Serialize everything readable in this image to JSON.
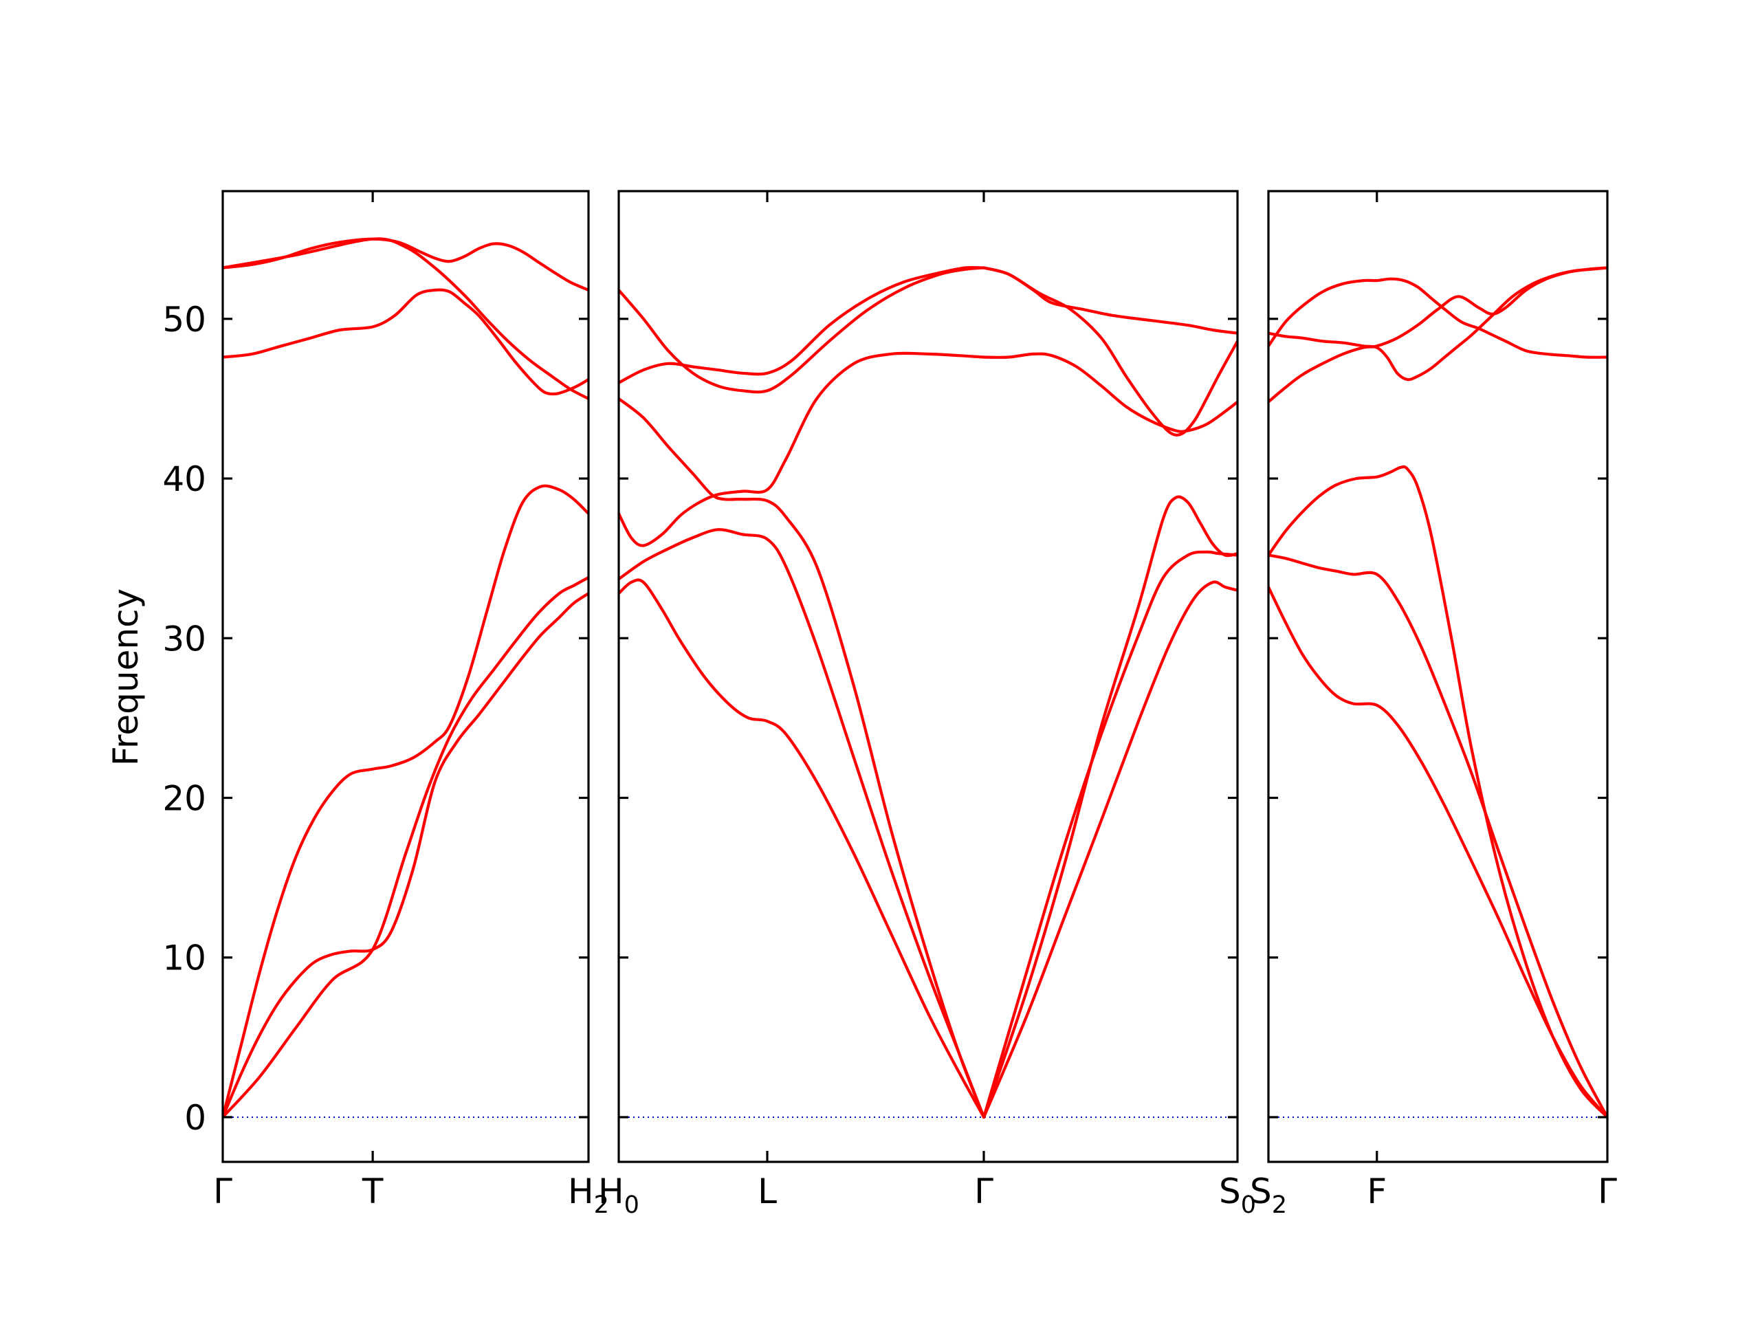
{
  "chart_data": {
    "type": "line",
    "ylabel": "Frequency",
    "ylim": [
      -2.8,
      58
    ],
    "yticks": [
      0,
      10,
      20,
      30,
      40,
      50
    ],
    "yticklabels": [
      "0",
      "10",
      "20",
      "30",
      "40",
      "50"
    ],
    "grid": false,
    "colors": {
      "bands": "#ff0000",
      "zero_line": "#0000cc"
    },
    "panels": [
      {
        "xlim": [
          0,
          1
        ],
        "ticks": [
          {
            "x": 0.0,
            "label": "Γ",
            "sub": ""
          },
          {
            "x": 0.41,
            "label": "T",
            "sub": ""
          },
          {
            "x": 1.0,
            "label": "H",
            "sub": "2"
          }
        ],
        "series": [
          {
            "x": [
              0,
              0.05,
              0.1,
              0.15,
              0.2,
              0.25,
              0.3,
              0.35,
              0.41,
              0.46,
              0.52,
              0.58,
              0.64,
              0.7,
              0.76,
              0.82,
              0.87,
              0.92,
              0.96,
              1.0
            ],
            "values": [
              0,
              2.7,
              5.1,
              7.1,
              8.6,
              9.7,
              10.2,
              10.4,
              10.5,
              11.6,
              15.5,
              21.0,
              23.5,
              25.2,
              27.0,
              28.8,
              30.2,
              31.3,
              32.2,
              32.8
            ]
          },
          {
            "x": [
              0,
              0.05,
              0.1,
              0.15,
              0.2,
              0.25,
              0.3,
              0.35,
              0.41,
              0.46,
              0.52,
              0.58,
              0.62,
              0.67,
              0.72,
              0.77,
              0.82,
              0.87,
              0.92,
              0.96,
              1.0
            ],
            "values": [
              0,
              4.5,
              9.0,
              13.0,
              16.3,
              18.7,
              20.4,
              21.5,
              21.8,
              22.0,
              22.5,
              23.5,
              24.5,
              27.5,
              31.5,
              35.5,
              38.5,
              39.5,
              39.3,
              38.7,
              37.8
            ]
          },
          {
            "x": [
              0,
              0.1,
              0.2,
              0.3,
              0.41,
              0.5,
              0.56,
              0.62,
              0.68,
              0.74,
              0.8,
              0.86,
              0.92,
              0.96,
              1.0
            ],
            "values": [
              0,
              2.5,
              5.6,
              8.6,
              10.5,
              16.5,
              20.5,
              23.8,
              26.2,
              28.0,
              29.8,
              31.5,
              32.8,
              33.3,
              33.8
            ]
          },
          {
            "x": [
              0,
              0.08,
              0.16,
              0.24,
              0.32,
              0.41,
              0.47,
              0.53,
              0.58,
              0.62,
              0.66,
              0.7,
              0.75,
              0.8,
              0.85,
              0.88,
              0.91,
              0.94,
              0.97,
              1.0
            ],
            "values": [
              47.6,
              47.8,
              48.3,
              48.8,
              49.3,
              49.5,
              50.2,
              51.5,
              51.8,
              51.7,
              51.0,
              50.2,
              48.8,
              47.3,
              46.0,
              45.4,
              45.3,
              45.5,
              45.8,
              46.2
            ]
          },
          {
            "x": [
              0,
              0.08,
              0.16,
              0.24,
              0.32,
              0.41,
              0.48,
              0.54,
              0.58,
              0.62,
              0.66,
              0.7,
              0.74,
              0.78,
              0.82,
              0.86,
              0.9,
              0.95,
              1.0
            ],
            "values": [
              53.2,
              53.4,
              53.8,
              54.4,
              54.8,
              55.0,
              54.8,
              54.2,
              53.8,
              53.6,
              53.9,
              54.4,
              54.7,
              54.6,
              54.2,
              53.6,
              53.0,
              52.3,
              51.8
            ]
          },
          {
            "x": [
              0,
              0.2,
              0.41,
              0.5,
              0.58,
              0.66,
              0.72,
              0.78,
              0.84,
              0.9,
              0.95,
              1.0
            ],
            "values": [
              53.2,
              54.0,
              55.0,
              54.5,
              53.2,
              51.5,
              50.0,
              48.6,
              47.4,
              46.4,
              45.6,
              45.0
            ]
          }
        ]
      },
      {
        "xlim": [
          0,
          1
        ],
        "ticks": [
          {
            "x": 0.0,
            "label": "H",
            "sub": "0"
          },
          {
            "x": 0.24,
            "label": "L",
            "sub": ""
          },
          {
            "x": 0.59,
            "label": "Γ",
            "sub": ""
          },
          {
            "x": 1.0,
            "label": "S",
            "sub": "0"
          }
        ],
        "series": [
          {
            "x": [
              0,
              0.02,
              0.04,
              0.07,
              0.1,
              0.14,
              0.18,
              0.21,
              0.24,
              0.27,
              0.32,
              0.38,
              0.44,
              0.5,
              0.55,
              0.59
            ],
            "values": [
              32.8,
              33.5,
              33.5,
              31.8,
              29.8,
              27.5,
              25.8,
              25.0,
              24.8,
              24.0,
              21.0,
              16.5,
              11.5,
              6.5,
              2.8,
              0
            ]
          },
          {
            "x": [
              0,
              0.04,
              0.08,
              0.12,
              0.16,
              0.2,
              0.24,
              0.27,
              0.32,
              0.38,
              0.44,
              0.5,
              0.55,
              0.59
            ],
            "values": [
              33.7,
              34.8,
              35.6,
              36.3,
              36.8,
              36.5,
              36.2,
              34.5,
              29.5,
              22.5,
              15.5,
              9.0,
              4.0,
              0
            ]
          },
          {
            "x": [
              0,
              0.02,
              0.04,
              0.07,
              0.1,
              0.13,
              0.16,
              0.2,
              0.24,
              0.27,
              0.32,
              0.38,
              0.44,
              0.5,
              0.55,
              0.59
            ],
            "values": [
              37.8,
              36.3,
              35.8,
              36.5,
              37.7,
              38.5,
              39.0,
              39.2,
              39.3,
              41.2,
              45.0,
              47.2,
              47.8,
              47.8,
              47.7,
              47.6
            ]
          },
          {
            "x": [
              0,
              0.04,
              0.08,
              0.12,
              0.15,
              0.17,
              0.2,
              0.24,
              0.27,
              0.32,
              0.38,
              0.44,
              0.5,
              0.55,
              0.59
            ],
            "values": [
              45.0,
              43.8,
              42.0,
              40.3,
              39.0,
              38.7,
              38.7,
              38.6,
              37.6,
              34.5,
              27.0,
              18.0,
              10.0,
              4.0,
              0
            ]
          },
          {
            "x": [
              0,
              0.04,
              0.08,
              0.12,
              0.16,
              0.2,
              0.24,
              0.28,
              0.34,
              0.4,
              0.46,
              0.52,
              0.56,
              0.59
            ],
            "values": [
              46.0,
              46.8,
              47.2,
              47.0,
              46.8,
              46.6,
              46.6,
              47.4,
              49.6,
              51.2,
              52.3,
              52.9,
              53.2,
              53.2
            ]
          },
          {
            "x": [
              0,
              0.04,
              0.08,
              0.12,
              0.16,
              0.2,
              0.24,
              0.28,
              0.34,
              0.4,
              0.46,
              0.52,
              0.56,
              0.59
            ],
            "values": [
              51.8,
              50.0,
              48.0,
              46.6,
              45.8,
              45.5,
              45.5,
              46.5,
              48.6,
              50.5,
              51.9,
              52.8,
              53.1,
              53.2
            ]
          },
          {
            "x": [
              0.59,
              0.63,
              0.68,
              0.73,
              0.78,
              0.82,
              0.86,
              0.89,
              0.91,
              0.93,
              0.95,
              0.97,
              1.0
            ],
            "values": [
              53.2,
              52.8,
              51.6,
              50.6,
              48.8,
              46.4,
              44.2,
              42.9,
              42.8,
              43.6,
              45.0,
              46.5,
              48.6
            ]
          },
          {
            "x": [
              0.59,
              0.63,
              0.67,
              0.7,
              0.75,
              0.8,
              0.86,
              0.92,
              0.96,
              1.0
            ],
            "values": [
              53.2,
              52.8,
              51.8,
              51.0,
              50.6,
              50.2,
              49.9,
              49.6,
              49.3,
              49.1
            ]
          },
          {
            "x": [
              0.59,
              0.63,
              0.67,
              0.7,
              0.74,
              0.78,
              0.82,
              0.86,
              0.9,
              0.92,
              0.95,
              0.98,
              1.0
            ],
            "values": [
              47.6,
              47.6,
              47.8,
              47.7,
              47.0,
              45.8,
              44.5,
              43.6,
              43.0,
              43.0,
              43.4,
              44.2,
              44.8
            ]
          },
          {
            "x": [
              0.59,
              0.66,
              0.72,
              0.78,
              0.84,
              0.88,
              0.9,
              0.92,
              0.94,
              0.96,
              0.98,
              1.0
            ],
            "values": [
              0,
              8.0,
              15.8,
              24.5,
              32.0,
              37.5,
              38.8,
              38.5,
              37.2,
              35.9,
              35.2,
              35.3
            ]
          },
          {
            "x": [
              0.59,
              0.66,
              0.72,
              0.78,
              0.84,
              0.88,
              0.92,
              0.95,
              0.97,
              1.0
            ],
            "values": [
              0,
              9.2,
              17.0,
              24.0,
              30.2,
              33.8,
              35.2,
              35.4,
              35.3,
              35.2
            ]
          },
          {
            "x": [
              0.59,
              0.66,
              0.72,
              0.78,
              0.84,
              0.89,
              0.93,
              0.96,
              0.98,
              1.0
            ],
            "values": [
              0,
              6.4,
              12.5,
              18.6,
              24.8,
              29.6,
              32.5,
              33.5,
              33.2,
              33.0
            ]
          }
        ]
      },
      {
        "xlim": [
          0,
          1
        ],
        "ticks": [
          {
            "x": 0.0,
            "label": "S",
            "sub": "2"
          },
          {
            "x": 0.32,
            "label": "F",
            "sub": ""
          },
          {
            "x": 1.0,
            "label": "Γ",
            "sub": ""
          }
        ],
        "series": [
          {
            "x": [
              0,
              0.05,
              0.1,
              0.15,
              0.2,
              0.25,
              0.32,
              0.38,
              0.45,
              0.52,
              0.6,
              0.68,
              0.76,
              0.84,
              0.92,
              1.0
            ],
            "values": [
              33.2,
              31.0,
              29.0,
              27.5,
              26.4,
              25.9,
              25.8,
              24.6,
              22.3,
              19.5,
              16.0,
              12.4,
              8.6,
              5.0,
              2.0,
              0
            ]
          },
          {
            "x": [
              0,
              0.05,
              0.1,
              0.15,
              0.2,
              0.25,
              0.32,
              0.38,
              0.45,
              0.52,
              0.6,
              0.68,
              0.76,
              0.84,
              0.92,
              1.0
            ],
            "values": [
              35.2,
              35.0,
              34.7,
              34.4,
              34.2,
              34.0,
              34.0,
              32.4,
              29.5,
              25.9,
              21.5,
              16.6,
              11.8,
              7.2,
              3.2,
              0
            ]
          },
          {
            "x": [
              0,
              0.05,
              0.1,
              0.15,
              0.2,
              0.26,
              0.32,
              0.36,
              0.39,
              0.41,
              0.44,
              0.48,
              0.54,
              0.6,
              0.68,
              0.76,
              0.84,
              0.92,
              1.0
            ],
            "values": [
              35.2,
              36.7,
              37.9,
              38.9,
              39.6,
              40.0,
              40.1,
              40.4,
              40.7,
              40.6,
              39.5,
              36.5,
              30.0,
              23.0,
              15.5,
              9.6,
              5.0,
              1.8,
              0
            ]
          },
          {
            "x": [
              0,
              0.05,
              0.1,
              0.16,
              0.22,
              0.28,
              0.32,
              0.36,
              0.4,
              0.44,
              0.48,
              0.52,
              0.57,
              0.62,
              0.66,
              0.7,
              0.76,
              0.82,
              0.88,
              0.94,
              1.0
            ],
            "values": [
              48.3,
              49.8,
              50.8,
              51.7,
              52.2,
              52.4,
              52.4,
              52.5,
              52.4,
              52.0,
              51.3,
              50.6,
              49.8,
              49.4,
              49.0,
              48.6,
              48.0,
              47.8,
              47.7,
              47.6,
              47.6
            ]
          },
          {
            "x": [
              0,
              0.05,
              0.1,
              0.16,
              0.22,
              0.28,
              0.32,
              0.35,
              0.38,
              0.41,
              0.44,
              0.48,
              0.52,
              0.56,
              0.6,
              0.66,
              0.72,
              0.78,
              0.84,
              0.9,
              0.95,
              1.0
            ],
            "values": [
              49.1,
              48.9,
              48.8,
              48.6,
              48.5,
              48.3,
              48.2,
              47.6,
              46.6,
              46.2,
              46.4,
              46.9,
              47.6,
              48.3,
              49.0,
              50.2,
              51.4,
              52.2,
              52.7,
              53.0,
              53.1,
              53.2
            ]
          },
          {
            "x": [
              0,
              0.05,
              0.1,
              0.16,
              0.22,
              0.28,
              0.32,
              0.38,
              0.44,
              0.5,
              0.56,
              0.62,
              0.66,
              0.7,
              0.76,
              0.82,
              0.88,
              0.94,
              1.0
            ],
            "values": [
              44.8,
              45.7,
              46.5,
              47.2,
              47.8,
              48.2,
              48.3,
              48.8,
              49.6,
              50.6,
              51.4,
              50.7,
              50.3,
              50.7,
              51.8,
              52.5,
              52.9,
              53.1,
              53.2
            ]
          }
        ]
      }
    ]
  }
}
